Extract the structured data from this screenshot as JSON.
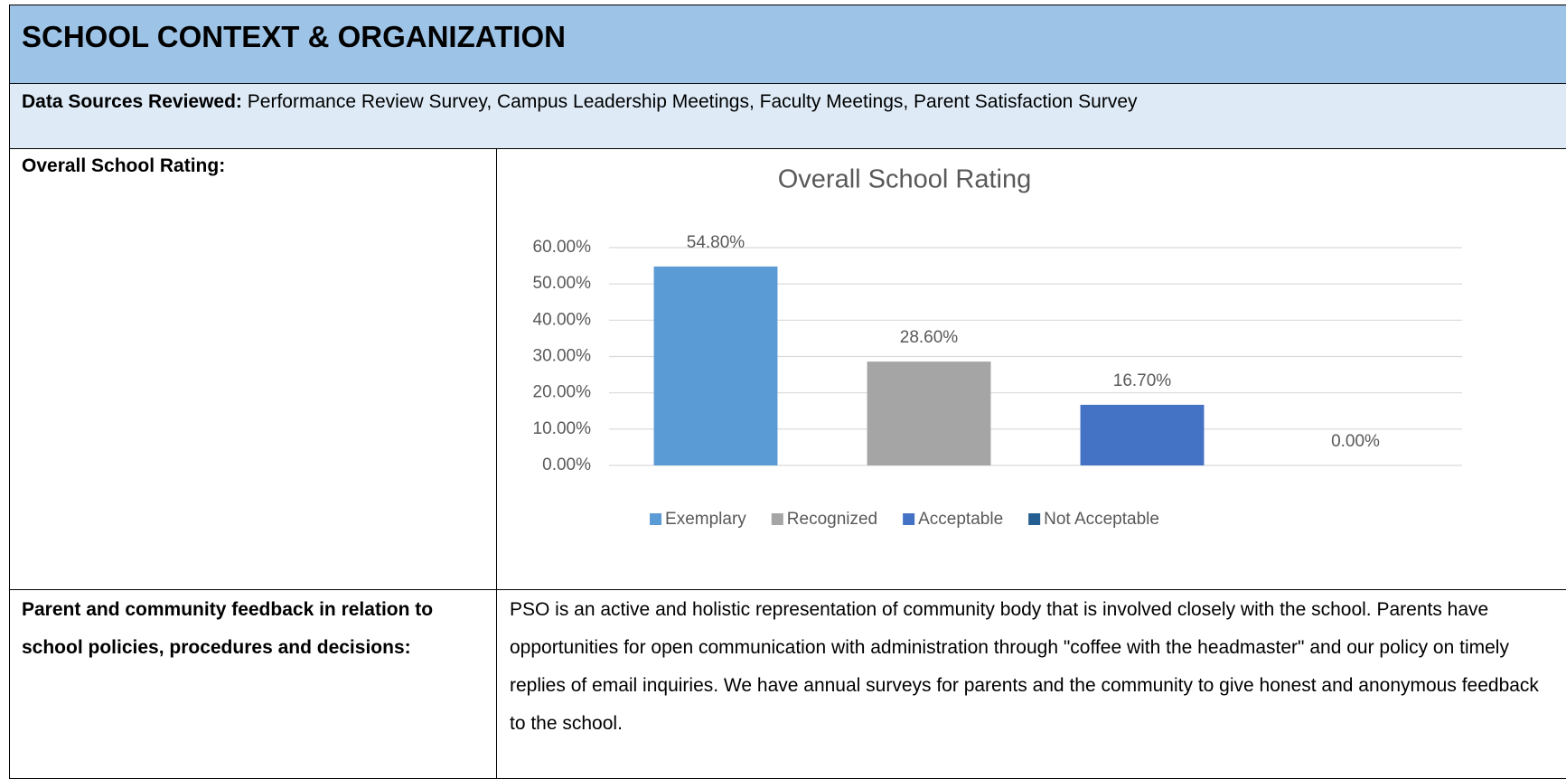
{
  "header": {
    "title": "SCHOOL CONTEXT & ORGANIZATION"
  },
  "data_sources": {
    "label": "Data Sources Reviewed:",
    "text": "Performance Review Survey, Campus Leadership Meetings, Faculty Meetings, Parent Satisfaction Survey"
  },
  "table": {
    "rows": [
      [
        "Overall School Rating:"
      ],
      [
        "Parent and community feedback in relation to school policies, procedures and decisions:",
        "PSO is an active and holistic representation of community body that is involved closely with the school. Parents have opportunities for open communication with administration through \"coffee with the headmaster\" and our policy on timely replies of email inquiries. We have annual surveys for parents and the community to give honest and anonymous feedback to the school."
      ]
    ]
  },
  "chart_data": {
    "type": "bar",
    "title": "Overall School Rating",
    "categories": [
      "Exemplary",
      "Recognized",
      "Acceptable",
      "Not Acceptable"
    ],
    "values": [
      54.8,
      28.6,
      16.7,
      0
    ],
    "value_labels": [
      "54.80%",
      "28.60%",
      "16.70%",
      "0.00%"
    ],
    "colors": [
      "#5b9bd5",
      "#a5a5a5",
      "#4472c4",
      "#255e91"
    ],
    "ylim": [
      0,
      60
    ],
    "yticks": [
      {
        "value": 0,
        "label": "0.00%"
      },
      {
        "value": 10,
        "label": "10.00%"
      },
      {
        "value": 20,
        "label": "20.00%"
      },
      {
        "value": 30,
        "label": "30.00%"
      },
      {
        "value": 40,
        "label": "40.00%"
      },
      {
        "value": 50,
        "label": "50.00%"
      },
      {
        "value": 60,
        "label": "60.00%"
      }
    ],
    "grid": true,
    "legend": "bottom"
  }
}
